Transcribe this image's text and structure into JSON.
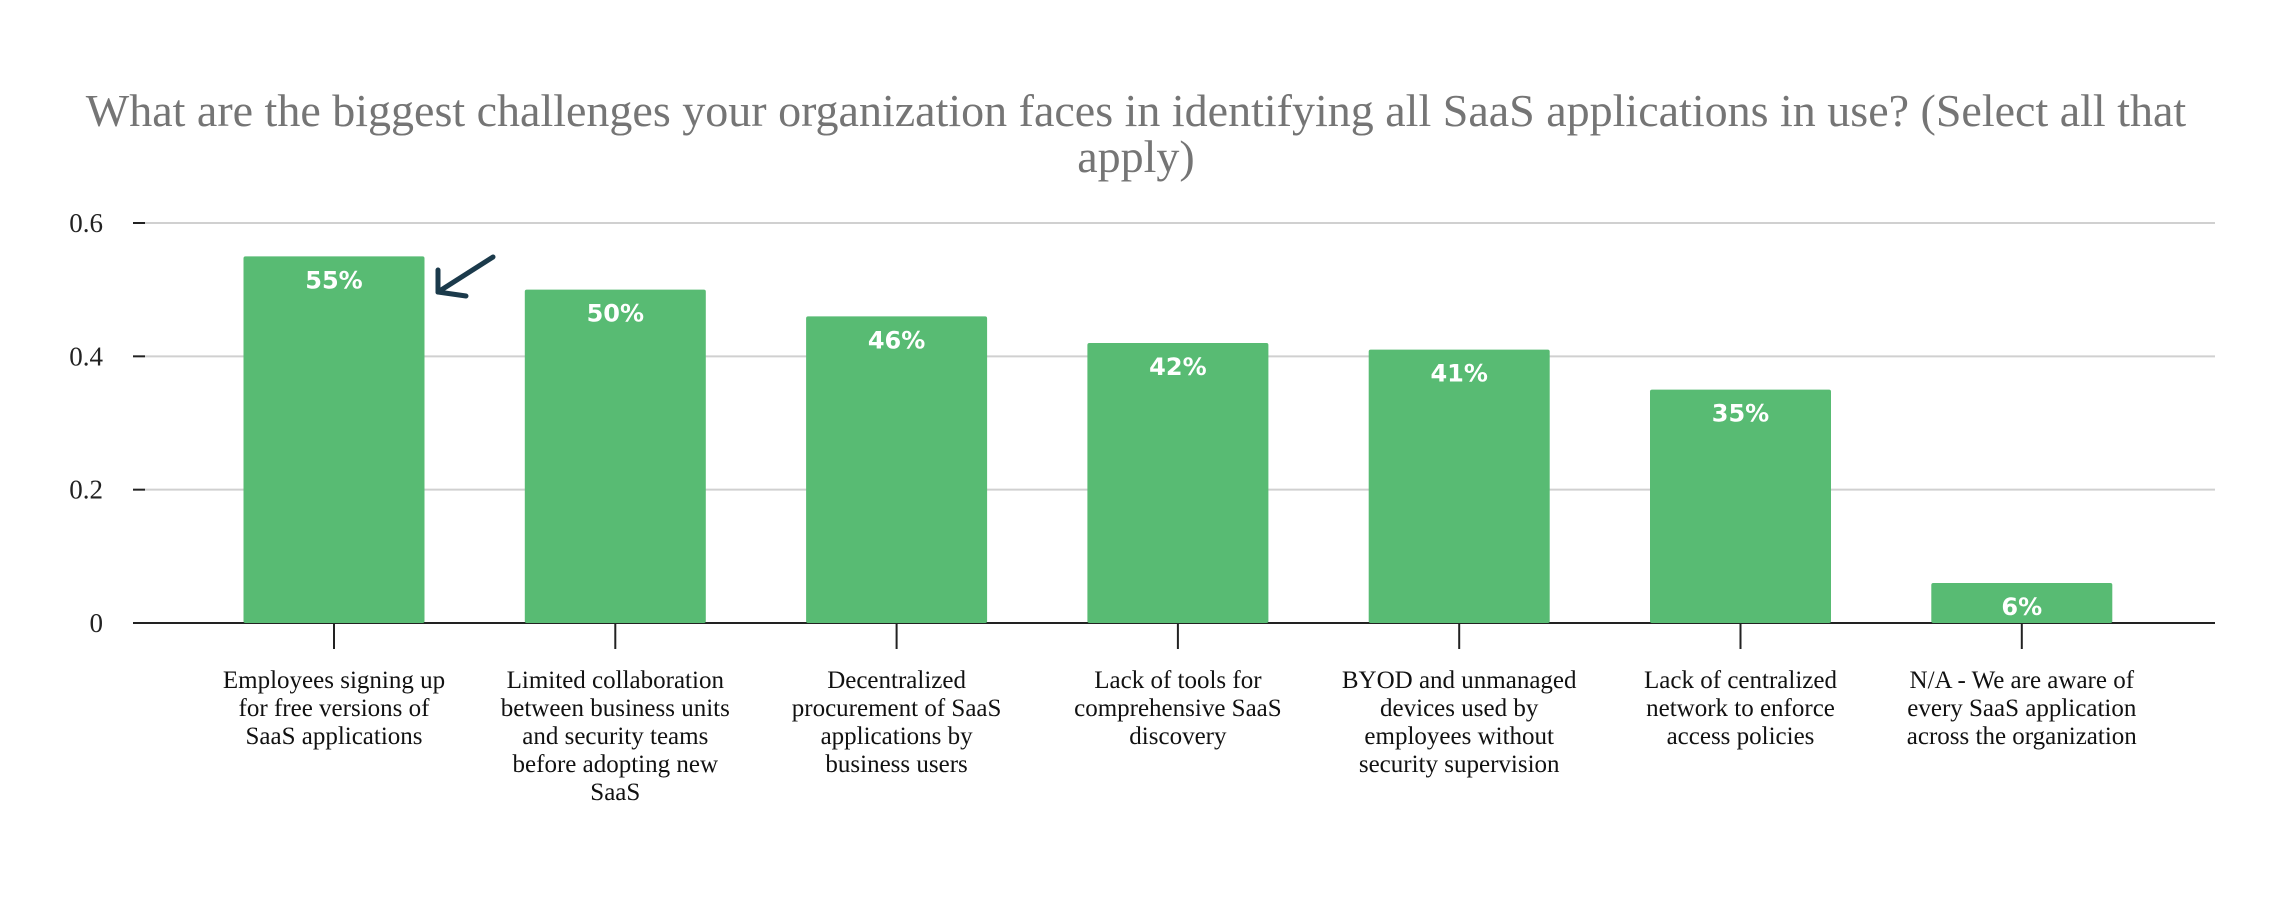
{
  "chart_data": {
    "type": "bar",
    "title_lines": [
      "What are the biggest challenges your organization faces in identifying all SaaS applications in use? (Select all that",
      "apply)"
    ],
    "categories": [
      [
        "Employees signing up",
        "for free versions of",
        "SaaS applications"
      ],
      [
        "Limited collaboration",
        "between business units",
        "and security teams",
        "before adopting new",
        "SaaS"
      ],
      [
        "Decentralized",
        "procurement of SaaS",
        "applications by",
        "business users"
      ],
      [
        "Lack of tools for",
        "comprehensive SaaS",
        "discovery"
      ],
      [
        "BYOD and unmanaged",
        "devices used by",
        "employees without",
        "security supervision"
      ],
      [
        "Lack of centralized",
        "network to enforce",
        "access policies"
      ],
      [
        "N/A - We are aware of",
        "every SaaS application",
        "across the organization"
      ]
    ],
    "values": [
      0.55,
      0.5,
      0.46,
      0.42,
      0.41,
      0.35,
      0.06
    ],
    "data_labels": [
      "55%",
      "50%",
      "46%",
      "42%",
      "41%",
      "35%",
      "6%"
    ],
    "yticks": [
      {
        "value": 0,
        "label": "0"
      },
      {
        "value": 0.2,
        "label": "0.2"
      },
      {
        "value": 0.4,
        "label": "0.4"
      },
      {
        "value": 0.6,
        "label": "0.6"
      }
    ],
    "ylim": [
      0,
      0.6
    ],
    "xlabel": "",
    "ylabel": "",
    "grid": true,
    "bar_color": "#58bb73",
    "grid_color": "#d0d0d0",
    "axis_color": "#222222",
    "annotation": {
      "type": "arrow",
      "points_to_index": 0,
      "color": "#1b3a4b"
    }
  }
}
